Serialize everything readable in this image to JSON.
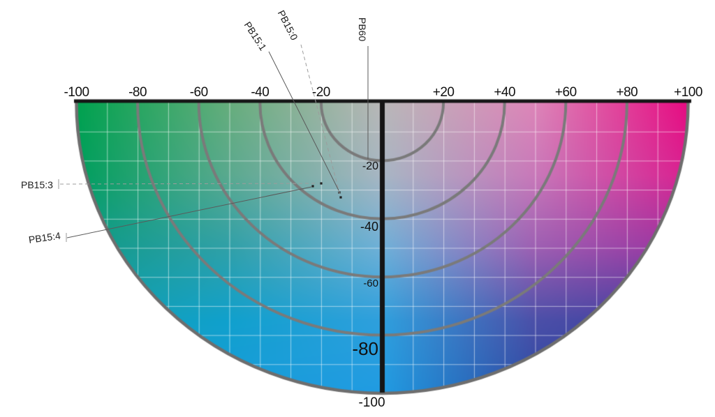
{
  "figure": {
    "background": "#ffffff",
    "axis_color": "#151515",
    "arc_color": "#7a7a7a",
    "rim_color": "#6e6e6e",
    "grid_color": "rgba(255,255,255,0.55)"
  },
  "chart_data": {
    "type": "scatter",
    "description": "Lower half of an a/b chromaticity color wheel (green to magenta horizontally, toward blue downward) with labeled phthalo/indanthrone blue pigment positions",
    "x_axis": {
      "range": [
        -100,
        100
      ],
      "tick_values": [
        -100,
        -80,
        -60,
        -40,
        -20,
        20,
        40,
        60,
        80,
        100
      ],
      "tick_labels": [
        "-100",
        "-80",
        "-60",
        "-40",
        "-20",
        "+20",
        "+40",
        "+60",
        "+80",
        "+100"
      ]
    },
    "y_axis": {
      "range": [
        0,
        -100
      ],
      "tick_values": [
        -20,
        -40,
        -60,
        -80,
        -100
      ],
      "tick_labels": [
        "-20",
        "-40",
        "-60",
        "-80",
        "-100"
      ]
    },
    "grid_step": 10,
    "arc_radii": [
      20,
      40,
      60,
      80,
      100
    ],
    "points": [
      {
        "label": "PB15:1",
        "a": -14,
        "b": -31,
        "leader": "solid"
      },
      {
        "label": "PB15:0",
        "a": -13,
        "b": -32,
        "leader": "dashed"
      },
      {
        "label": "PB60",
        "a": -5,
        "b": -19,
        "leader": "solid"
      },
      {
        "label": "PB15:3",
        "a": -20,
        "b": -28,
        "leader": "dashed"
      },
      {
        "label": "PB15:4",
        "a": -22,
        "b": -29,
        "leader": "solid"
      }
    ],
    "field_colors": [
      [
        "#00a14e",
        "#66ad7c",
        "#b9b7b8",
        "#dd85b8",
        "#e60b81"
      ],
      [
        "#009e5e",
        "#5aa98f",
        "#a8b6c4",
        "#c878b9",
        "#d92090"
      ],
      [
        "#0d9a89",
        "#30a0a8",
        "#6fb0d8",
        "#9d5fb2",
        "#99319f"
      ],
      [
        "#11a0b0",
        "#10a0cd",
        "#2f9fdd",
        "#4b4fa8",
        "#3f3a9d"
      ],
      [
        "#18a2c8",
        "#179cda",
        "#209be2",
        "#2b49a2",
        "#2c3894"
      ]
    ]
  }
}
